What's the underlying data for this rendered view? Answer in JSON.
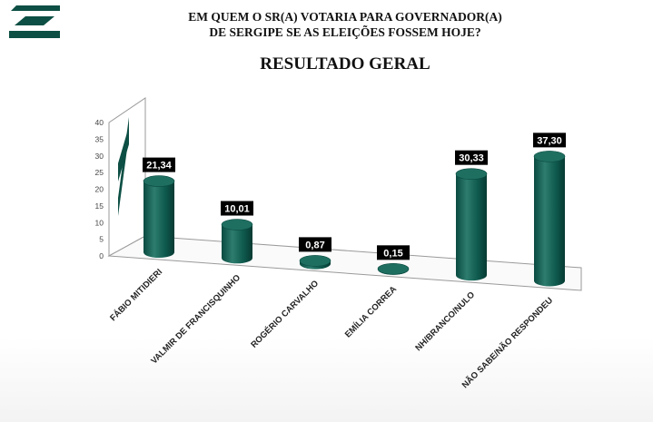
{
  "header": {
    "title_line1": "EM QUEM O SR(A) VOTARIA PARA GOVERNADOR(A)",
    "title_line2": "DE SERGIPE SE AS ELEIÇÕES FOSSEM HOJE?",
    "subtitle": "RESULTADO GERAL"
  },
  "colors": {
    "bar": "#0f5a4e",
    "bar_light": "#3f8f80",
    "bar_dark": "#083a32",
    "logo": "#0d4f44"
  },
  "logo": {
    "icon": "logo-stripes-icon"
  },
  "chart_data": {
    "type": "bar",
    "categories": [
      "FÁBIO MITIDIERI",
      "VALMIR DE FRANCISQUINHO",
      "ROGÉRIO CARVALHO",
      "EMÍLIA CORREA",
      "NH/BRANCO/NULO",
      "NÃO SABE/NÃO RESPONDEU"
    ],
    "values": [
      21.34,
      10.01,
      0.87,
      0.15,
      30.33,
      37.3
    ],
    "value_labels": [
      "21,34",
      "10,01",
      "0,87",
      "0,15",
      "30,33",
      "37,30"
    ],
    "yticks": [
      "0",
      "5",
      "10",
      "15",
      "20",
      "25",
      "30",
      "35",
      "40"
    ],
    "ylim": [
      0,
      40
    ],
    "grid": false,
    "legend": "none",
    "style": "3d-cylinder"
  }
}
